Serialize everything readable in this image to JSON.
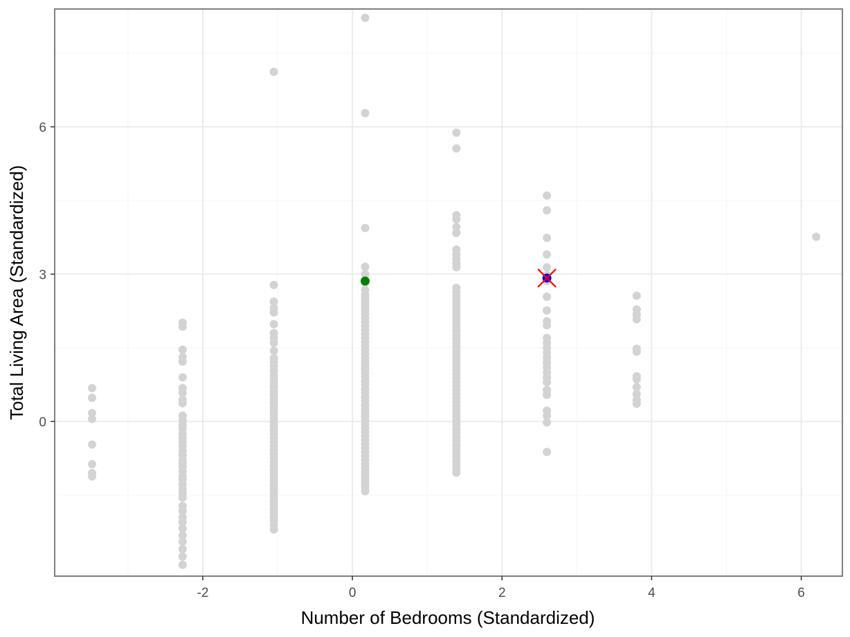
{
  "chart_data": {
    "type": "scatter",
    "title": "",
    "xlabel": "Number of Bedrooms (Standardized)",
    "ylabel": "Total Living Area (Standardized)",
    "xlim": [
      -3.98,
      6.55
    ],
    "ylim": [
      -3.15,
      8.4
    ],
    "x_ticks": [
      -2,
      0,
      2,
      4,
      6
    ],
    "y_ticks": [
      0,
      3,
      6
    ],
    "x_tick_labels": [
      "-2",
      "0",
      "2",
      "4",
      "6"
    ],
    "y_tick_labels": [
      "0",
      "3",
      "6"
    ],
    "grid": true,
    "legend": "none",
    "colors": {
      "background_points": "#d3d3d3",
      "green_point": "#008000",
      "blue_point": "#0000ff",
      "cross_marker": "#ff0000",
      "grid_major": "#ebebeb",
      "grid_minor": "#f5f5f5",
      "panel_border": "#7f7f7f"
    },
    "series": [
      {
        "color": "#d3d3d3",
        "columns": [
          {
            "x": -3.48,
            "y": [
              0.68,
              0.48,
              0.17,
              0.05,
              -0.47,
              -0.87,
              -1.05,
              -1.12
            ]
          },
          {
            "x": -2.27,
            "y": [
              2.01,
              1.93,
              1.46,
              1.31,
              1.22,
              0.9,
              0.68,
              0.58,
              0.44,
              0.37,
              0.12,
              0.02,
              -0.08,
              -0.15,
              -0.25,
              -0.33,
              -0.42,
              -0.5,
              -0.6,
              -0.68,
              -0.78,
              -0.86,
              -0.92,
              -1.02,
              -1.12,
              -1.18,
              -1.28,
              -1.38,
              -1.46,
              -1.55,
              -1.72,
              -1.82,
              -1.95,
              -2.05,
              -2.18,
              -2.32,
              -2.45,
              -2.6,
              -2.75,
              -2.92
            ]
          },
          {
            "x": -1.05,
            "y": [
              7.12,
              2.78,
              2.44,
              2.31,
              2.22,
              1.98,
              1.8,
              1.7,
              1.6,
              1.44,
              1.29,
              1.21,
              1.12,
              1.03,
              0.94,
              0.86,
              0.78,
              0.7,
              0.62,
              0.54,
              0.46,
              0.38,
              0.3,
              0.22,
              0.14,
              0.06,
              -0.02,
              -0.1,
              -0.18,
              -0.26,
              -0.34,
              -0.42,
              -0.5,
              -0.58,
              -0.66,
              -0.74,
              -0.82,
              -0.9,
              -0.98,
              -1.06,
              -1.14,
              -1.22,
              -1.3,
              -1.38,
              -1.46,
              -1.54,
              -1.62,
              -1.7,
              -1.78,
              -1.86,
              -1.94,
              -2.02,
              -2.1,
              -2.2
            ]
          },
          {
            "x": 0.17,
            "y": [
              8.22,
              6.28,
              3.94,
              3.15,
              3.0,
              2.82,
              2.68,
              2.58,
              2.5,
              2.42,
              2.34,
              2.26,
              2.18,
              2.1,
              2.02,
              1.94,
              1.86,
              1.78,
              1.7,
              1.62,
              1.54,
              1.46,
              1.38,
              1.3,
              1.22,
              1.14,
              1.06,
              0.98,
              0.9,
              0.82,
              0.74,
              0.66,
              0.58,
              0.5,
              0.42,
              0.34,
              0.26,
              0.18,
              0.1,
              0.02,
              -0.06,
              -0.14,
              -0.22,
              -0.3,
              -0.38,
              -0.46,
              -0.54,
              -0.62,
              -0.7,
              -0.78,
              -0.86,
              -0.94,
              -1.02,
              -1.1,
              -1.18,
              -1.26,
              -1.34,
              -1.42
            ]
          },
          {
            "x": 1.39,
            "y": [
              5.88,
              5.56,
              4.2,
              4.12,
              3.96,
              3.84,
              3.5,
              3.4,
              3.3,
              3.22,
              3.14,
              2.72,
              2.64,
              2.56,
              2.48,
              2.4,
              2.32,
              2.24,
              2.16,
              2.08,
              2.0,
              1.92,
              1.84,
              1.76,
              1.68,
              1.6,
              1.52,
              1.44,
              1.36,
              1.28,
              1.2,
              1.12,
              1.04,
              0.96,
              0.88,
              0.8,
              0.72,
              0.64,
              0.56,
              0.48,
              0.4,
              0.32,
              0.24,
              0.16,
              0.08,
              0.0,
              -0.08,
              -0.16,
              -0.24,
              -0.32,
              -0.4,
              -0.48,
              -0.56,
              -0.64,
              -0.72,
              -0.8,
              -0.88,
              -0.96,
              -1.04
            ]
          },
          {
            "x": 2.6,
            "y": [
              4.6,
              4.3,
              3.74,
              3.4,
              3.14,
              2.98,
              2.86,
              2.54,
              2.26,
              2.04,
              1.96,
              1.7,
              1.6,
              1.5,
              1.4,
              1.3,
              1.2,
              1.1,
              1.0,
              0.9,
              0.8,
              0.64,
              0.54,
              0.22,
              0.12,
              -0.02,
              -0.62
            ]
          },
          {
            "x": 3.8,
            "y": [
              2.56,
              2.28,
              2.18,
              2.08,
              1.48,
              1.42,
              0.92,
              0.86,
              0.7,
              0.56,
              0.44,
              0.36
            ]
          },
          {
            "x": 6.2,
            "y": [
              3.76
            ]
          }
        ]
      },
      {
        "color": "#008000",
        "points": [
          {
            "x": 0.17,
            "y": 2.86
          }
        ]
      },
      {
        "color": "#0000ff",
        "points": [
          {
            "x": 2.6,
            "y": 2.92
          }
        ]
      }
    ],
    "annotations": [
      {
        "type": "cross",
        "color": "#ff0000",
        "x": 2.6,
        "y": 2.92
      }
    ]
  }
}
